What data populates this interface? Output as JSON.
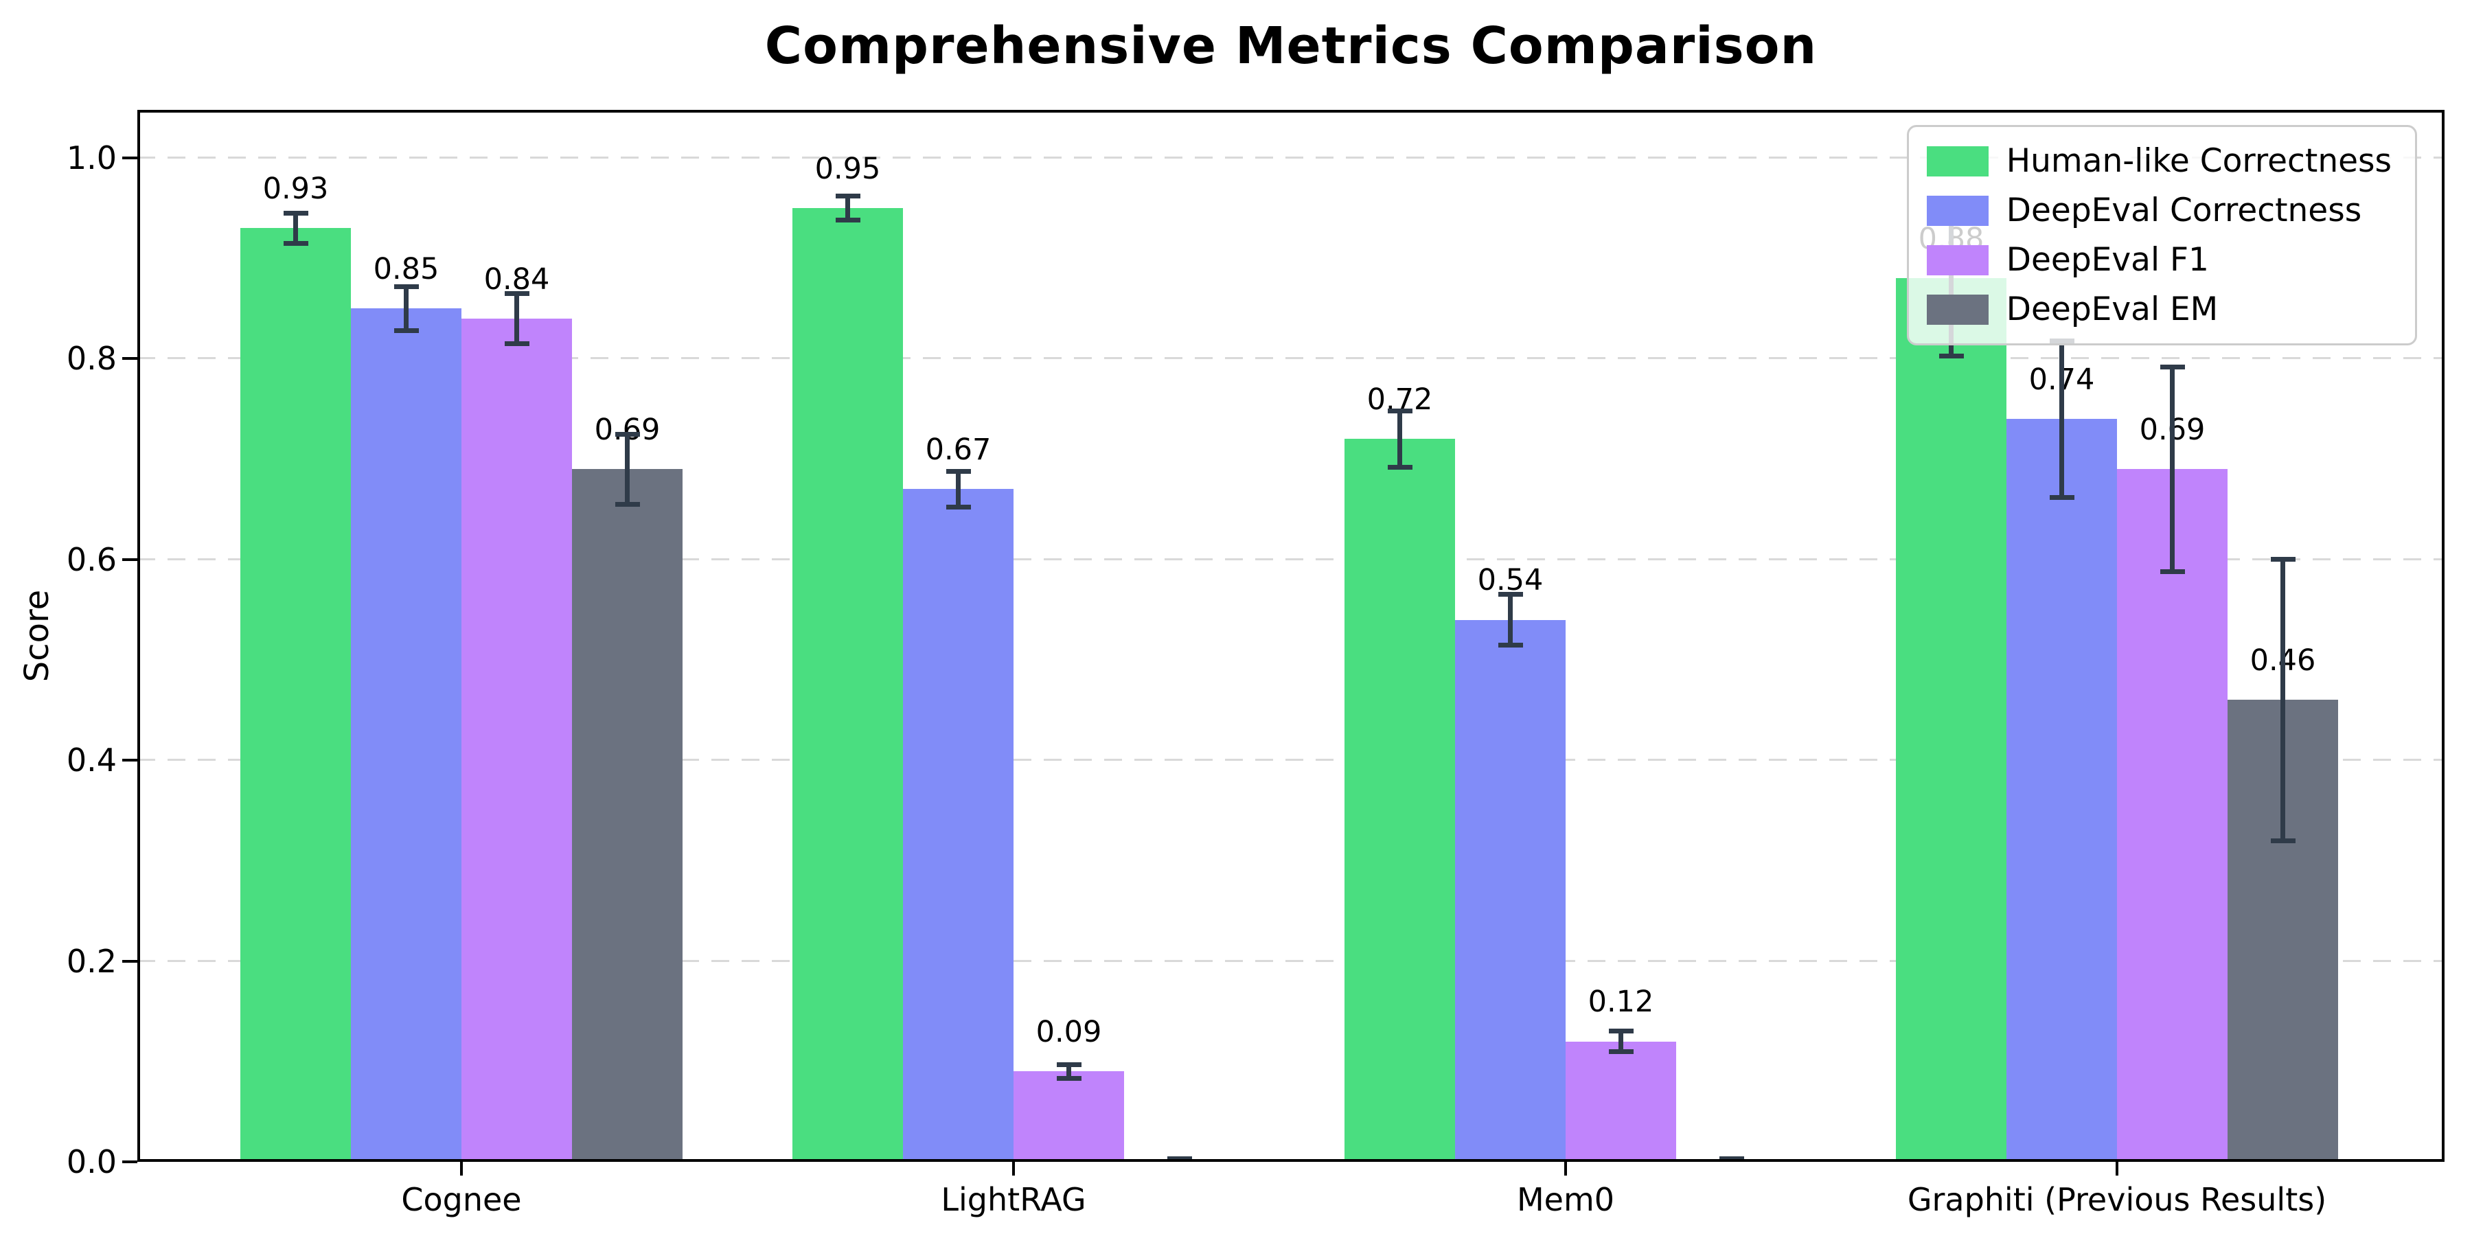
{
  "title": "Comprehensive Metrics Comparison",
  "chart_data": {
    "type": "bar",
    "title": "Comprehensive Metrics Comparison",
    "xlabel": "",
    "ylabel": "Score",
    "categories": [
      "Cognee",
      "LightRAG",
      "Mem0",
      "Graphiti (Previous Results)"
    ],
    "series": [
      {
        "name": "Human-like Correctness",
        "color": "#4ade80",
        "values": [
          0.93,
          0.95,
          0.72,
          0.88
        ],
        "errors": [
          0.015,
          0.012,
          0.028,
          0.077
        ],
        "labels": [
          "0.93",
          "0.95",
          "0.72",
          "0.88"
        ]
      },
      {
        "name": "DeepEval Correctness",
        "color": "#818cf8",
        "values": [
          0.85,
          0.67,
          0.54,
          0.74
        ],
        "errors": [
          0.022,
          0.018,
          0.025,
          0.078
        ],
        "labels": [
          "0.85",
          "0.67",
          "0.54",
          "0.74"
        ]
      },
      {
        "name": "DeepEval F1",
        "color": "#c084fc",
        "values": [
          0.84,
          0.09,
          0.12,
          0.69
        ],
        "errors": [
          0.025,
          0.007,
          0.01,
          0.102
        ],
        "labels": [
          "0.84",
          "0.09",
          "0.12",
          "0.69"
        ]
      },
      {
        "name": "DeepEval EM",
        "color": "#6b7280",
        "values": [
          0.69,
          0.0,
          0.0,
          0.46
        ],
        "errors": [
          0.035,
          0.003,
          0.003,
          0.14
        ],
        "labels": [
          "0.69",
          "",
          "",
          "0.46"
        ]
      }
    ],
    "yticks": [
      "0.0",
      "0.2",
      "0.4",
      "0.6",
      "0.8",
      "1.0"
    ],
    "ylim": [
      0.0,
      1.048
    ],
    "grid": "horizontal-dashed",
    "legend_position": "upper-right"
  },
  "colors": {
    "error_bar": "#2f3b49",
    "gridline": "#d9d9d9",
    "axis": "#000000",
    "legend_border": "#cccccc",
    "background": "#ffffff"
  }
}
